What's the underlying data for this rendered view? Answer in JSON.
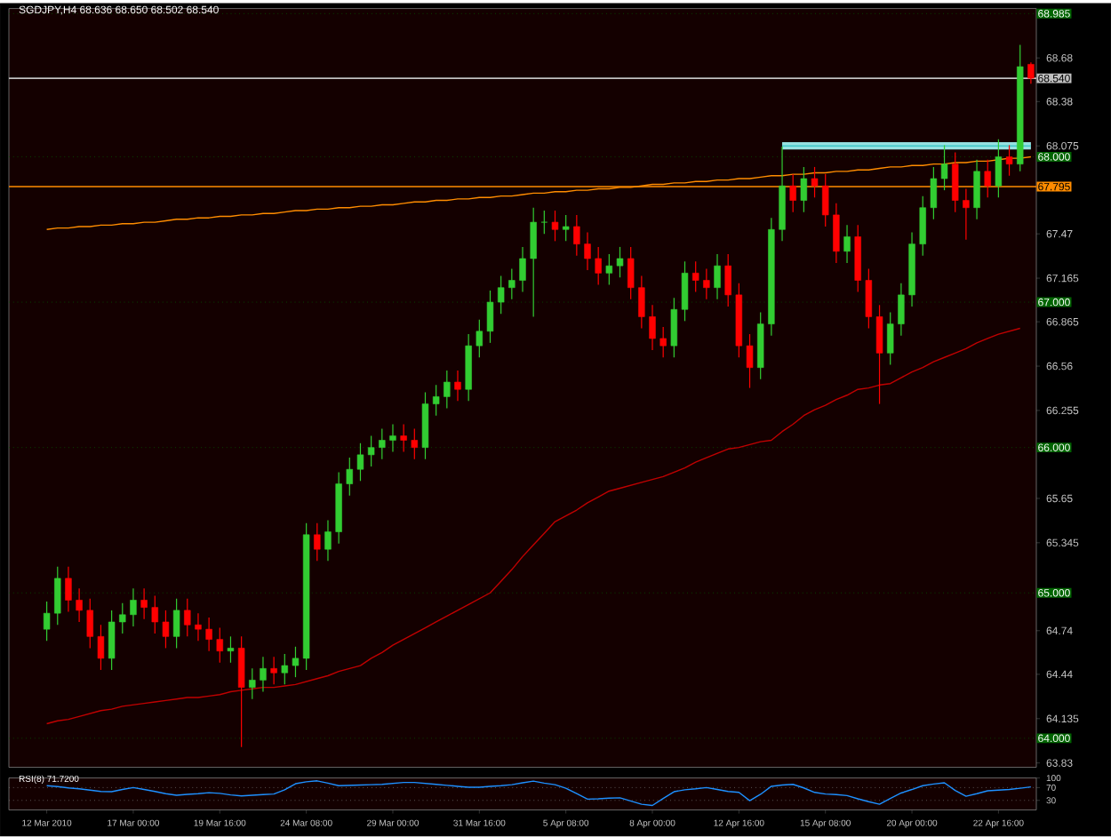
{
  "chart_data": [
    {
      "type": "candlestick",
      "title": "SGDJPY,H4  68.636 68.650 68.502 68.540",
      "tick_labels": "y",
      "categories": [
        null,
        null,
        null,
        null,
        null,
        null,
        null,
        null,
        null,
        null,
        null,
        null,
        null,
        null,
        null,
        null,
        null,
        null,
        null,
        null,
        null,
        null,
        null,
        null,
        null,
        null,
        null,
        null,
        null,
        null,
        null,
        null,
        null,
        null,
        null,
        null,
        null,
        null,
        null,
        null,
        null,
        null,
        null,
        null,
        null,
        null,
        null,
        null,
        null,
        null,
        null,
        null,
        null,
        null,
        null,
        null,
        null,
        null,
        null,
        null,
        null,
        null,
        null,
        null,
        null,
        null,
        null,
        null,
        null,
        null,
        null,
        null,
        null,
        null,
        null,
        null,
        null,
        null,
        null,
        null,
        null,
        null,
        null,
        null,
        null,
        null,
        null,
        null,
        null,
        null,
        null,
        null
      ],
      "ohlc": [
        [
          64.75,
          64.94,
          64.67,
          64.86
        ],
        [
          64.86,
          65.18,
          64.78,
          65.1
        ],
        [
          65.1,
          65.18,
          64.87,
          64.95
        ],
        [
          64.95,
          65.03,
          64.8,
          64.88
        ],
        [
          64.88,
          64.96,
          64.62,
          64.7
        ],
        [
          64.7,
          64.78,
          64.47,
          64.55
        ],
        [
          64.55,
          64.88,
          64.47,
          64.8
        ],
        [
          64.8,
          64.93,
          64.72,
          64.85
        ],
        [
          64.85,
          65.03,
          64.77,
          64.95
        ],
        [
          64.95,
          65.03,
          64.82,
          64.9
        ],
        [
          64.9,
          64.98,
          64.72,
          64.8
        ],
        [
          64.8,
          64.88,
          64.62,
          64.7
        ],
        [
          64.7,
          64.96,
          64.62,
          64.88
        ],
        [
          64.88,
          64.96,
          64.7,
          64.78
        ],
        [
          64.78,
          64.86,
          64.67,
          64.75
        ],
        [
          64.75,
          64.83,
          64.6,
          64.68
        ],
        [
          64.68,
          64.76,
          64.52,
          64.6
        ],
        [
          64.6,
          64.7,
          64.52,
          64.62
        ],
        [
          64.62,
          64.7,
          63.94,
          64.35
        ],
        [
          64.35,
          64.48,
          64.27,
          64.4
        ],
        [
          64.4,
          64.56,
          64.32,
          64.48
        ],
        [
          64.48,
          64.56,
          64.37,
          64.45
        ],
        [
          64.45,
          64.58,
          64.37,
          64.5
        ],
        [
          64.5,
          64.63,
          64.42,
          64.55
        ],
        [
          64.55,
          65.48,
          64.47,
          65.4
        ],
        [
          65.4,
          65.48,
          65.22,
          65.3
        ],
        [
          65.3,
          65.5,
          65.22,
          65.42
        ],
        [
          65.42,
          65.83,
          65.34,
          65.75
        ],
        [
          65.75,
          65.93,
          65.67,
          65.85
        ],
        [
          65.85,
          66.03,
          65.77,
          65.95
        ],
        [
          65.95,
          66.08,
          65.87,
          66.0
        ],
        [
          66.0,
          66.13,
          65.92,
          66.05
        ],
        [
          66.05,
          66.16,
          65.97,
          66.08
        ],
        [
          66.08,
          66.16,
          65.97,
          66.05
        ],
        [
          66.05,
          66.13,
          65.92,
          66.0
        ],
        [
          66.0,
          66.38,
          65.92,
          66.3
        ],
        [
          66.3,
          66.43,
          66.22,
          66.35
        ],
        [
          66.35,
          66.53,
          66.27,
          66.45
        ],
        [
          66.45,
          66.53,
          66.32,
          66.4
        ],
        [
          66.4,
          66.78,
          66.32,
          66.7
        ],
        [
          66.7,
          66.88,
          66.62,
          66.8
        ],
        [
          66.8,
          67.08,
          66.72,
          67.0
        ],
        [
          67.0,
          67.18,
          66.92,
          67.1
        ],
        [
          67.1,
          67.23,
          67.02,
          67.15
        ],
        [
          67.15,
          67.38,
          67.07,
          67.3
        ],
        [
          67.3,
          67.65,
          66.9,
          67.55
        ],
        [
          67.55,
          67.63,
          67.47,
          67.55
        ],
        [
          67.55,
          67.63,
          67.42,
          67.5
        ],
        [
          67.5,
          67.6,
          67.42,
          67.52
        ],
        [
          67.52,
          67.6,
          67.32,
          67.4
        ],
        [
          67.4,
          67.48,
          67.22,
          67.3
        ],
        [
          67.3,
          67.38,
          67.12,
          67.2
        ],
        [
          67.2,
          67.33,
          67.12,
          67.25
        ],
        [
          67.25,
          67.38,
          67.17,
          67.3
        ],
        [
          67.3,
          67.38,
          67.02,
          67.1
        ],
        [
          67.1,
          67.18,
          66.82,
          66.9
        ],
        [
          66.9,
          66.98,
          66.67,
          66.75
        ],
        [
          66.75,
          66.83,
          66.62,
          66.7
        ],
        [
          66.7,
          67.03,
          66.62,
          66.95
        ],
        [
          66.95,
          67.28,
          66.87,
          67.2
        ],
        [
          67.2,
          67.28,
          67.07,
          67.15
        ],
        [
          67.15,
          67.23,
          67.02,
          67.1
        ],
        [
          67.1,
          67.33,
          67.02,
          67.25
        ],
        [
          67.25,
          67.33,
          66.97,
          67.05
        ],
        [
          67.05,
          67.13,
          66.62,
          66.7
        ],
        [
          66.7,
          66.78,
          66.41,
          66.55
        ],
        [
          66.55,
          66.93,
          66.47,
          66.85
        ],
        [
          66.85,
          67.58,
          66.77,
          67.5
        ],
        [
          67.5,
          68.07,
          67.42,
          67.8
        ],
        [
          67.8,
          67.88,
          67.62,
          67.7
        ],
        [
          67.7,
          67.93,
          67.62,
          67.85
        ],
        [
          67.85,
          67.93,
          67.72,
          67.8
        ],
        [
          67.8,
          67.88,
          67.52,
          67.6
        ],
        [
          67.6,
          67.68,
          67.27,
          67.35
        ],
        [
          67.35,
          67.53,
          67.27,
          67.45
        ],
        [
          67.45,
          67.53,
          67.07,
          67.15
        ],
        [
          67.15,
          67.23,
          66.82,
          66.9
        ],
        [
          66.9,
          66.98,
          66.3,
          66.65
        ],
        [
          66.65,
          66.93,
          66.57,
          66.85
        ],
        [
          66.85,
          67.13,
          66.77,
          67.05
        ],
        [
          67.05,
          67.48,
          66.97,
          67.4
        ],
        [
          67.4,
          67.73,
          67.32,
          67.65
        ],
        [
          67.65,
          67.93,
          67.57,
          67.85
        ],
        [
          67.85,
          68.08,
          67.77,
          67.95
        ],
        [
          67.95,
          68.03,
          67.62,
          67.7
        ],
        [
          67.7,
          67.78,
          67.43,
          67.65
        ],
        [
          67.65,
          67.98,
          67.57,
          67.9
        ],
        [
          67.9,
          67.98,
          67.72,
          67.8
        ],
        [
          67.8,
          68.12,
          67.72,
          68.0
        ],
        [
          68.0,
          68.08,
          67.87,
          67.95
        ],
        [
          67.95,
          68.77,
          67.9,
          68.62
        ],
        [
          68.636,
          68.65,
          68.502,
          68.54
        ]
      ],
      "series": [
        {
          "type": "line",
          "color": "#c00000",
          "values": [
            64.1,
            64.12,
            64.13,
            64.15,
            64.17,
            64.19,
            64.2,
            64.22,
            64.23,
            64.24,
            64.25,
            64.26,
            64.27,
            64.28,
            64.28,
            64.29,
            64.3,
            64.32,
            64.33,
            64.34,
            64.35,
            64.35,
            64.36,
            64.37,
            64.39,
            64.41,
            64.43,
            64.46,
            64.48,
            64.5,
            64.55,
            64.59,
            64.64,
            64.68,
            64.72,
            64.76,
            64.8,
            64.84,
            64.88,
            64.92,
            64.96,
            65.0,
            65.08,
            65.16,
            65.25,
            65.33,
            65.41,
            65.49,
            65.53,
            65.57,
            65.62,
            65.66,
            65.7,
            65.72,
            65.74,
            65.76,
            65.78,
            65.8,
            65.83,
            65.86,
            65.9,
            65.93,
            65.96,
            65.99,
            66.0,
            66.02,
            66.04,
            66.05,
            66.11,
            66.16,
            66.22,
            66.26,
            66.29,
            66.33,
            66.36,
            66.4,
            66.41,
            66.43,
            66.44,
            66.48,
            66.52,
            66.55,
            66.59,
            66.62,
            66.65,
            66.68,
            66.72,
            66.75,
            66.78,
            66.8,
            66.82,
            null
          ]
        },
        {
          "type": "line",
          "color": "#ff8c00",
          "values": [
            67.5,
            67.51,
            67.51,
            67.52,
            67.52,
            67.53,
            67.53,
            67.54,
            67.54,
            67.55,
            67.55,
            67.56,
            67.57,
            67.57,
            67.58,
            67.58,
            67.59,
            67.59,
            67.6,
            67.6,
            67.61,
            67.61,
            67.62,
            67.63,
            67.63,
            67.64,
            67.64,
            67.65,
            67.65,
            67.66,
            67.66,
            67.67,
            67.67,
            67.68,
            67.69,
            67.69,
            67.7,
            67.7,
            67.71,
            67.71,
            67.72,
            67.72,
            67.73,
            67.73,
            67.74,
            67.75,
            67.75,
            67.76,
            67.76,
            67.77,
            67.77,
            67.78,
            67.78,
            67.79,
            67.79,
            67.8,
            67.81,
            67.81,
            67.82,
            67.82,
            67.83,
            67.83,
            67.84,
            67.84,
            67.85,
            67.85,
            67.86,
            67.87,
            67.87,
            67.88,
            67.88,
            67.89,
            67.89,
            67.9,
            67.9,
            67.91,
            67.91,
            67.92,
            67.93,
            67.93,
            67.94,
            67.94,
            67.95,
            67.95,
            67.96,
            67.96,
            67.97,
            67.97,
            67.98,
            67.99,
            67.99,
            68.0
          ]
        },
        {
          "type": "line",
          "color": "#40c8c8",
          "values": [
            null,
            null,
            null,
            null,
            null,
            null,
            null,
            null,
            null,
            null,
            null,
            null,
            null,
            null,
            null,
            null,
            null,
            null,
            null,
            null,
            null,
            null,
            null,
            null,
            null,
            null,
            null,
            null,
            null,
            null,
            null,
            null,
            null,
            null,
            null,
            null,
            null,
            null,
            null,
            null,
            null,
            null,
            null,
            null,
            null,
            null,
            null,
            null,
            null,
            null,
            null,
            null,
            null,
            null,
            null,
            null,
            null,
            null,
            null,
            null,
            null,
            null,
            null,
            null,
            null,
            null,
            null,
            null,
            68.075,
            68.075,
            68.075,
            68.075,
            68.075,
            68.075,
            68.075,
            68.075,
            68.075,
            68.075,
            68.075,
            68.075,
            68.075,
            68.075,
            68.075,
            68.075,
            68.075,
            68.075,
            68.075,
            68.075,
            68.075,
            68.075,
            68.075,
            68.075
          ],
          "lower": [
            null,
            null,
            null,
            null,
            null,
            null,
            null,
            null,
            null,
            null,
            null,
            null,
            null,
            null,
            null,
            null,
            null,
            null,
            null,
            null,
            null,
            null,
            null,
            null,
            null,
            null,
            null,
            null,
            null,
            null,
            null,
            null,
            null,
            null,
            null,
            null,
            null,
            null,
            null,
            null,
            null,
            null,
            null,
            null,
            null,
            null,
            null,
            null,
            null,
            null,
            null,
            null,
            null,
            null,
            null,
            null,
            null,
            null,
            null,
            null,
            null,
            null,
            null,
            null,
            null,
            null,
            null,
            null,
            68.05,
            68.05,
            68.05,
            68.05,
            68.05,
            68.05,
            68.05,
            68.05,
            68.05,
            68.05,
            68.05,
            68.05,
            68.05,
            68.05,
            68.05,
            68.05,
            68.05,
            68.05,
            68.05,
            68.05,
            68.05,
            68.05,
            68.05,
            68.05
          ],
          "upper": [
            null,
            null,
            null,
            null,
            null,
            null,
            null,
            null,
            null,
            null,
            null,
            null,
            null,
            null,
            null,
            null,
            null,
            null,
            null,
            null,
            null,
            null,
            null,
            null,
            null,
            null,
            null,
            null,
            null,
            null,
            null,
            null,
            null,
            null,
            null,
            null,
            null,
            null,
            null,
            null,
            null,
            null,
            null,
            null,
            null,
            null,
            null,
            null,
            null,
            null,
            null,
            null,
            null,
            null,
            null,
            null,
            null,
            null,
            null,
            null,
            null,
            null,
            null,
            null,
            null,
            null,
            null,
            null,
            68.1,
            68.1,
            68.1,
            68.1,
            68.1,
            68.1,
            68.1,
            68.1,
            68.1,
            68.1,
            68.1,
            68.1,
            68.1,
            68.1,
            68.1,
            68.1,
            68.1,
            68.1,
            68.1,
            68.1,
            68.1,
            68.1,
            68.1,
            68.1
          ]
        }
      ],
      "ylim": [
        63.8,
        69.02
      ],
      "yticks": [
        63.83,
        64.135,
        64.44,
        64.74,
        65.345,
        65.65,
        66.255,
        66.56,
        66.865,
        67.165,
        67.47,
        68.075,
        68.38,
        68.68
      ],
      "ref_lines": [
        {
          "axis": "y",
          "value": 64.0,
          "label": "64.000",
          "color": "#006400",
          "line_style": "dotted"
        },
        {
          "axis": "y",
          "value": 65.0,
          "label": "65.000",
          "color": "#006400",
          "line_style": "dotted"
        },
        {
          "axis": "y",
          "value": 66.0,
          "label": "66.000",
          "color": "#006400",
          "line_style": "dotted"
        },
        {
          "axis": "y",
          "value": 67.0,
          "label": "67.000",
          "color": "#006400",
          "line_style": "dotted"
        },
        {
          "axis": "y",
          "value": 68.0,
          "label": "68.000",
          "color": "#006400",
          "line_style": "dotted"
        },
        {
          "axis": "y",
          "value": 68.985,
          "label": "68.985",
          "color": "#006400",
          "line_style": "dotted"
        },
        {
          "axis": "y",
          "value": 67.795,
          "label": "67.795",
          "color": "#ff8c00",
          "line_style": "solid"
        },
        {
          "axis": "y",
          "value": 68.54,
          "label": "68.540",
          "color": "#c0c0c0",
          "line_style": "solid"
        }
      ]
    },
    {
      "type": "line",
      "title": "RSI(8) 71.7200",
      "categories": [
        "12 Mar 2010",
        null,
        null,
        null,
        null,
        null,
        null,
        null,
        "17 Mar 00:00",
        null,
        null,
        null,
        null,
        null,
        null,
        null,
        "19 Mar 16:00",
        null,
        null,
        null,
        null,
        null,
        null,
        null,
        "24 Mar 08:00",
        null,
        null,
        null,
        null,
        null,
        null,
        null,
        "29 Mar 00:00",
        null,
        null,
        null,
        null,
        null,
        null,
        null,
        "31 Mar 16:00",
        null,
        null,
        null,
        null,
        null,
        null,
        null,
        "5 Apr 08:00",
        null,
        null,
        null,
        null,
        null,
        null,
        null,
        "8 Apr 00:00",
        null,
        null,
        null,
        null,
        null,
        null,
        null,
        "12 Apr 16:00",
        null,
        null,
        null,
        null,
        null,
        null,
        null,
        "15 Apr 08:00",
        null,
        null,
        null,
        null,
        null,
        null,
        null,
        "20 Apr 00:00",
        null,
        null,
        null,
        null,
        null,
        null,
        null,
        "22 Apr 16:00",
        null,
        null,
        null
      ],
      "series": [
        {
          "color": "#1e90ff",
          "values": [
            76,
            73,
            69,
            66,
            62,
            58,
            57,
            64,
            70,
            64,
            58,
            51,
            46,
            49,
            51,
            54,
            52,
            47,
            44,
            46,
            48,
            50,
            63,
            82,
            88,
            91,
            84,
            76,
            77,
            78,
            79,
            80,
            83,
            86,
            86,
            83,
            80,
            77,
            74,
            71,
            71,
            74,
            76,
            79,
            85,
            90,
            84,
            79,
            68,
            51,
            34,
            35,
            37,
            38,
            28,
            18,
            14,
            36,
            57,
            63,
            66,
            70,
            64,
            58,
            55,
            29,
            49,
            74,
            78,
            80,
            69,
            55,
            50,
            48,
            45,
            35,
            26,
            18,
            36,
            53,
            64,
            76,
            81,
            85,
            61,
            43,
            51,
            60,
            62,
            64,
            68,
            72
          ]
        }
      ],
      "ylim": [
        0,
        100
      ],
      "yticks": [
        30,
        70,
        100
      ],
      "ref_lines": [
        {
          "axis": "y",
          "value": 70,
          "color": "#808080",
          "line_style": "dotted"
        },
        {
          "axis": "y",
          "value": 30,
          "color": "#808080",
          "line_style": "dotted"
        }
      ]
    }
  ]
}
